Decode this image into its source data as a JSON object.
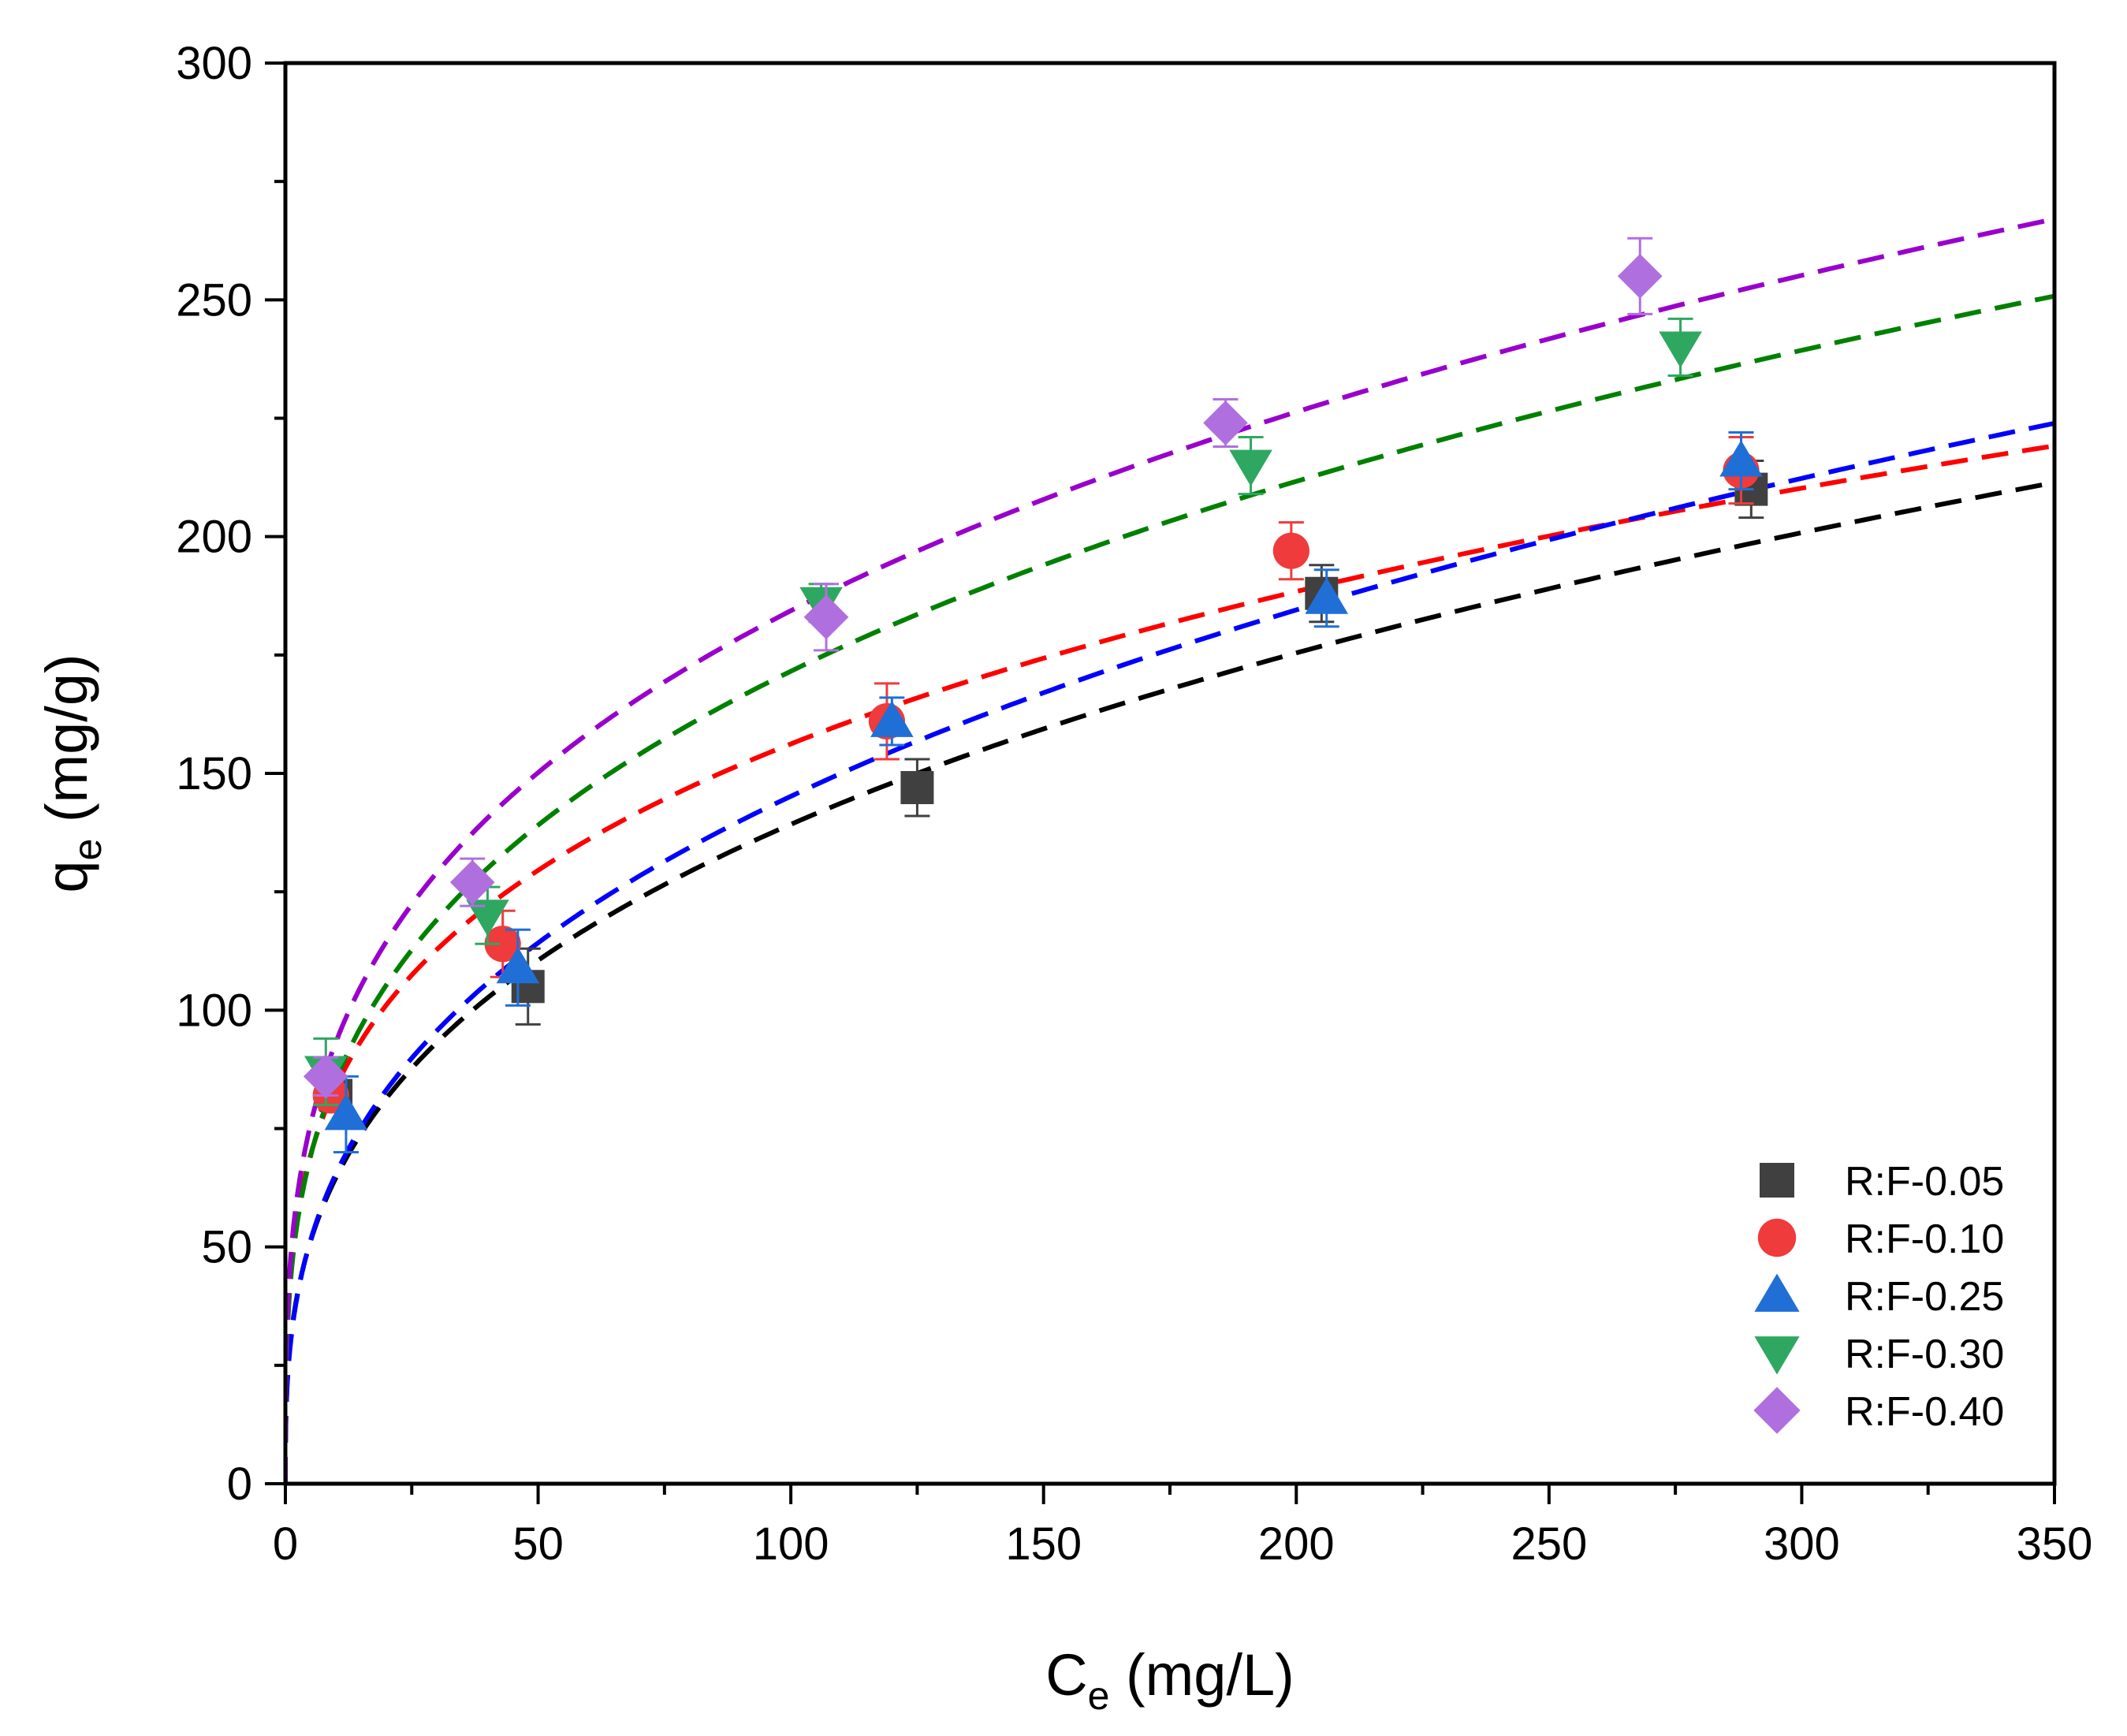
{
  "chart_data": {
    "type": "scatter",
    "title": "",
    "xlabel": {
      "main": "C",
      "sub": "e",
      "unit": " (mg/L)"
    },
    "ylabel": {
      "main": "q",
      "sub": "e",
      "unit": " (mg/g)"
    },
    "xlim": [
      0,
      350
    ],
    "ylim": [
      0,
      300
    ],
    "xticks": [
      0,
      50,
      100,
      150,
      200,
      250,
      300,
      350
    ],
    "yticks": [
      0,
      50,
      100,
      150,
      200,
      250,
      300
    ],
    "xtick_labels": [
      "0",
      "50",
      "100",
      "150",
      "200",
      "250",
      "300",
      "350"
    ],
    "ytick_labels": [
      "0",
      "50",
      "100",
      "150",
      "200",
      "250",
      "300"
    ],
    "legend_position": "bottom-right",
    "series": [
      {
        "name": "R:F-0.05",
        "marker": "square",
        "color": "#404040",
        "fit_color": "#000000",
        "x": [
          10,
          48,
          125,
          205,
          290
        ],
        "y": [
          82,
          105,
          147,
          188,
          210
        ],
        "err": [
          3,
          8,
          6,
          6,
          6
        ],
        "fit": {
          "model": "freundlich",
          "K": 30.0,
          "n": 3.0
        }
      },
      {
        "name": "R:F-0.10",
        "marker": "circle",
        "color": "#ef3b3b",
        "fit_color": "#ff0000",
        "x": [
          9,
          43,
          119,
          199,
          288
        ],
        "y": [
          82,
          114,
          161,
          197,
          214
        ],
        "err": [
          3,
          7,
          8,
          6,
          7
        ],
        "fit": {
          "model": "freundlich",
          "K": 45.0,
          "n": 3.7
        }
      },
      {
        "name": "R:F-0.25",
        "marker": "triangle-up",
        "color": "#1f6fd6",
        "fit_color": "#0000ff",
        "x": [
          12,
          46,
          120,
          206,
          288
        ],
        "y": [
          78,
          109,
          161,
          187,
          216
        ],
        "err": [
          8,
          8,
          5,
          6,
          6
        ],
        "fit": {
          "model": "freundlich",
          "K": 29.5,
          "n": 2.89
        }
      },
      {
        "name": "R:F-0.30",
        "marker": "triangle-down",
        "color": "#2ea860",
        "fit_color": "#008000",
        "x": [
          8,
          40,
          106,
          191,
          276
        ],
        "y": [
          87,
          120,
          186,
          215,
          240
        ],
        "err": [
          7,
          6,
          4,
          6,
          6
        ],
        "fit": {
          "model": "freundlich",
          "K": 42.5,
          "n": 3.3
        }
      },
      {
        "name": "R:F-0.40",
        "marker": "diamond",
        "color": "#b06fdf",
        "fit_color": "#9900cc",
        "x": [
          8,
          37,
          107,
          186,
          268
        ],
        "y": [
          86,
          127,
          183,
          224,
          255
        ],
        "err": [
          4,
          5,
          7,
          5,
          8
        ],
        "fit": {
          "model": "freundlich",
          "K": 47.2,
          "n": 3.38
        }
      }
    ]
  }
}
